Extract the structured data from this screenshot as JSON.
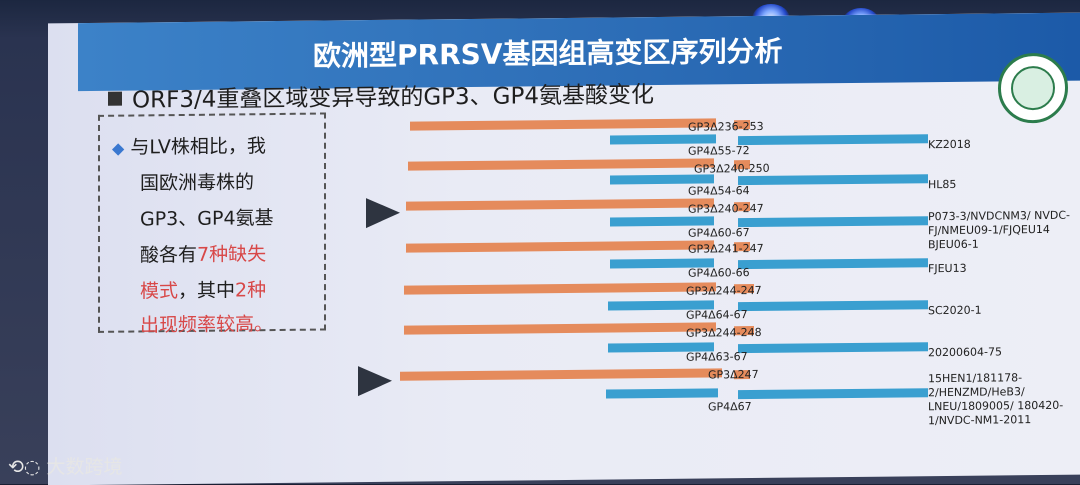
{
  "slide": {
    "title": "欧洲型PRRSV基因组高变区序列分析",
    "subtitle": "ORF3/4重叠区域变异导致的GP3、GP4氨基酸变化"
  },
  "textbox": {
    "line1": "与LV株相比，我",
    "line2": "国欧洲毒株的",
    "line3": "GP3、GP4氨基",
    "line4_a": "酸各有",
    "line4_b": "7种缺失",
    "line5_a": "模式",
    "line5_b": "，其中",
    "line5_c": "2种",
    "line6": "出现频率较高。"
  },
  "rows": [
    {
      "gp3": "GP3Δ236-253",
      "gp4": "GP4Δ55-72",
      "strain": "KZ2018"
    },
    {
      "gp3": "GP3Δ240-250",
      "gp4": "GP4Δ54-64",
      "strain": "HL85"
    },
    {
      "gp3": "GP3Δ240-247",
      "gp4": "GP4Δ60-67",
      "strain": "P073-3/NVDCNM3/ NVDC-FJ/NMEU09-1/FJQEU14 BJEU06-1"
    },
    {
      "gp3": "GP3Δ241-247",
      "gp4": "GP4Δ60-66",
      "strain": "FJEU13"
    },
    {
      "gp3": "GP3Δ244-247",
      "gp4": "GP4Δ64-67",
      "strain": "SC2020-1"
    },
    {
      "gp3": "GP3Δ244-248",
      "gp4": "GP4Δ63-67",
      "strain": "20200604-75"
    },
    {
      "gp3": "GP3Δ247",
      "gp4": "GP4Δ67",
      "strain": "15HEN1/181178-2/HENZMD/HeB3/ LNEU/1809005/ 180420-1/NVDC-NM1-2011"
    }
  ],
  "watermark": "大数跨境",
  "colors": {
    "gp3_bar": "#e58b5c",
    "gp4_bar": "#3a9fd0",
    "highlight": "#d84848",
    "title_bar": "#2e6fb8"
  }
}
